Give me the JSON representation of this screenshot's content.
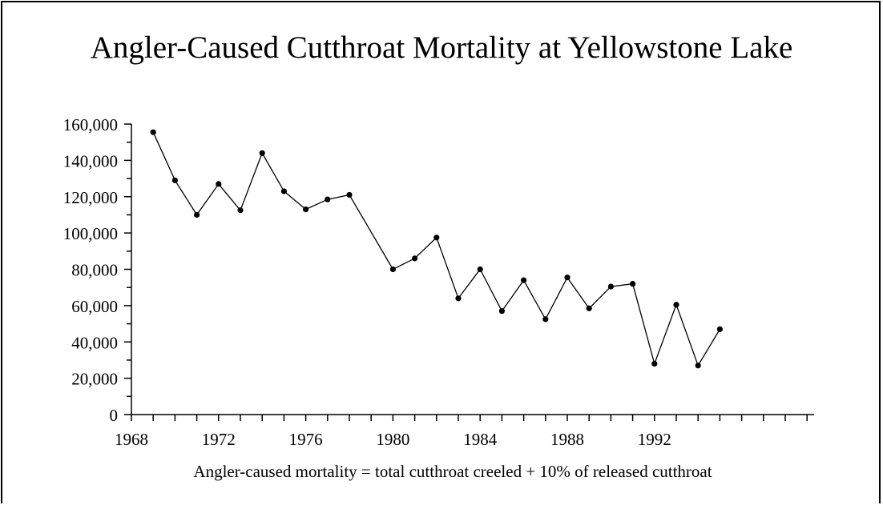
{
  "chart_data": {
    "type": "line",
    "title": "Angler-Caused Cutthroat Mortality at Yellowstone Lake",
    "xlabel": "Angler-caused mortality = total cutthroat creeled + 10% of released cutthroat",
    "ylabel": "",
    "xlim": [
      1968,
      1996
    ],
    "ylim": [
      0,
      160000
    ],
    "grid": false,
    "legend": "none",
    "x_ticks": [
      1968,
      1972,
      1976,
      1980,
      1984,
      1988,
      1992
    ],
    "y_ticks": [
      "0",
      "20,000",
      "40,000",
      "60,000",
      "80,000",
      "100,000",
      "120,000",
      "140,000",
      "160,000"
    ],
    "series": [
      {
        "x": [
          1969,
          1970,
          1971,
          1972,
          1973,
          1974,
          1975,
          1976,
          1977,
          1978,
          1980,
          1981,
          1982,
          1983,
          1984,
          1985,
          1986,
          1987,
          1988,
          1989,
          1990,
          1991,
          1992,
          1993,
          1994,
          1995
        ],
        "values": [
          155500,
          129000,
          110000,
          127000,
          112500,
          144000,
          123000,
          113000,
          118500,
          121000,
          80000,
          86000,
          97500,
          64000,
          80000,
          57000,
          74000,
          52500,
          75500,
          58500,
          70500,
          72000,
          28000,
          60500,
          27000,
          47000
        ]
      }
    ]
  }
}
